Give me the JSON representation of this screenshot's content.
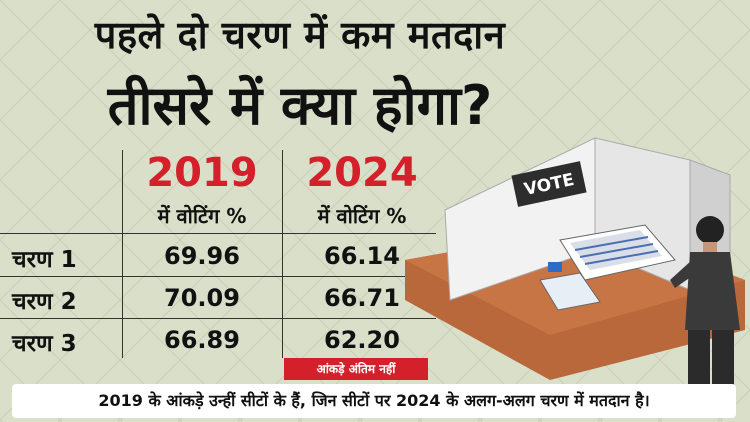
{
  "headline": {
    "line1": "पहले दो चरण में कम मतदान",
    "line2": "तीसरे में क्या होगा?"
  },
  "table": {
    "columns": [
      {
        "year": "2019",
        "sub": "में वोटिंग %"
      },
      {
        "year": "2024",
        "sub": "में वोटिंग %"
      }
    ],
    "rows": [
      {
        "label": "चरण 1",
        "v2019": "69.96",
        "v2024": "66.14"
      },
      {
        "label": "चरण 2",
        "v2019": "70.09",
        "v2024": "66.71"
      },
      {
        "label": "चरण 3",
        "v2019": "66.89",
        "v2024": "62.20"
      }
    ],
    "note": "आंकड़े अंतिम नहीं"
  },
  "illustration": {
    "booth_sign": "VOTE"
  },
  "footer": "2019 के आंकड़े उन्हीं सीटों के हैं, जिन सीटों पर 2024 के अलग-अलग चरण में मतदान है।",
  "colors": {
    "background": "#d9dfc9",
    "accent_red": "#d4202b",
    "text": "#111111"
  }
}
